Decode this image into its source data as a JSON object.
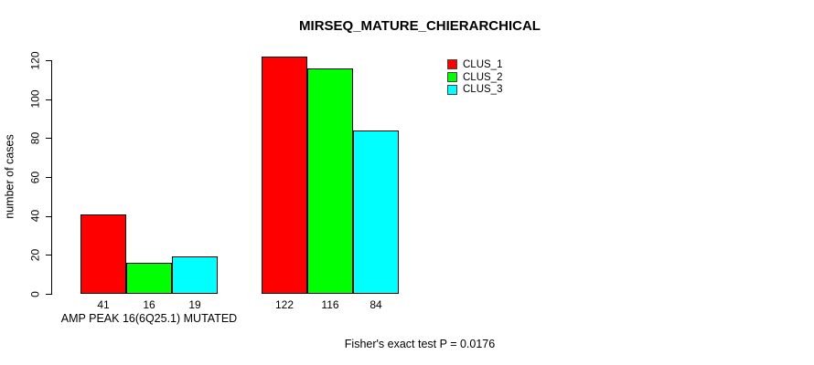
{
  "chart_data": {
    "type": "bar",
    "title": "MIRSEQ_MATURE_CHIERARCHICAL",
    "ylabel": "number of cases",
    "xlabel": "",
    "ylim": [
      0,
      120
    ],
    "yticks": [
      0,
      20,
      40,
      60,
      80,
      100,
      120
    ],
    "categories": [
      "AMP PEAK 16(6Q25.1) MUTATED",
      ""
    ],
    "series": [
      {
        "name": "CLUS_1",
        "color": "#ff0000",
        "values": [
          41,
          122
        ]
      },
      {
        "name": "CLUS_2",
        "color": "#00ff00",
        "values": [
          16,
          116
        ]
      },
      {
        "name": "CLUS_3",
        "color": "#00ffff",
        "values": [
          19,
          84
        ]
      }
    ],
    "legend_position": "top-right",
    "grid": false,
    "background": "#ffffff",
    "bar_border_color": "#000000",
    "axis_color": "#000000",
    "annotation": "Fisher's exact test P = 0.0176"
  }
}
